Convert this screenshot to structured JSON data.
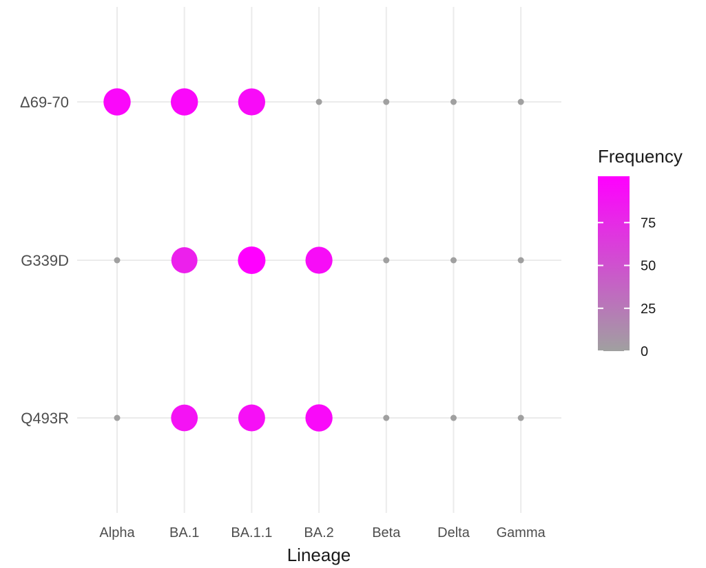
{
  "chart_data": {
    "type": "scatter",
    "subtype": "dot-matrix",
    "x_categories": [
      "Alpha",
      "BA.1",
      "BA.1.1",
      "BA.2",
      "Beta",
      "Delta",
      "Gamma"
    ],
    "y_categories": [
      "Δ69-70",
      "G339D",
      "Q493R"
    ],
    "xlabel": "Lineage",
    "ylabel": "",
    "values": [
      [
        95,
        95,
        93,
        0,
        0,
        0,
        0
      ],
      [
        0,
        80,
        100,
        92,
        0,
        0,
        0
      ],
      [
        0,
        88,
        90,
        94,
        0,
        0,
        0
      ]
    ],
    "legend": {
      "title": "Frequency",
      "position": "right",
      "ticks": [
        0,
        25,
        50,
        75
      ],
      "range": [
        0,
        100
      ],
      "color_low": "#a0a0a0",
      "color_high": "#ff00ff"
    },
    "grid": true
  }
}
